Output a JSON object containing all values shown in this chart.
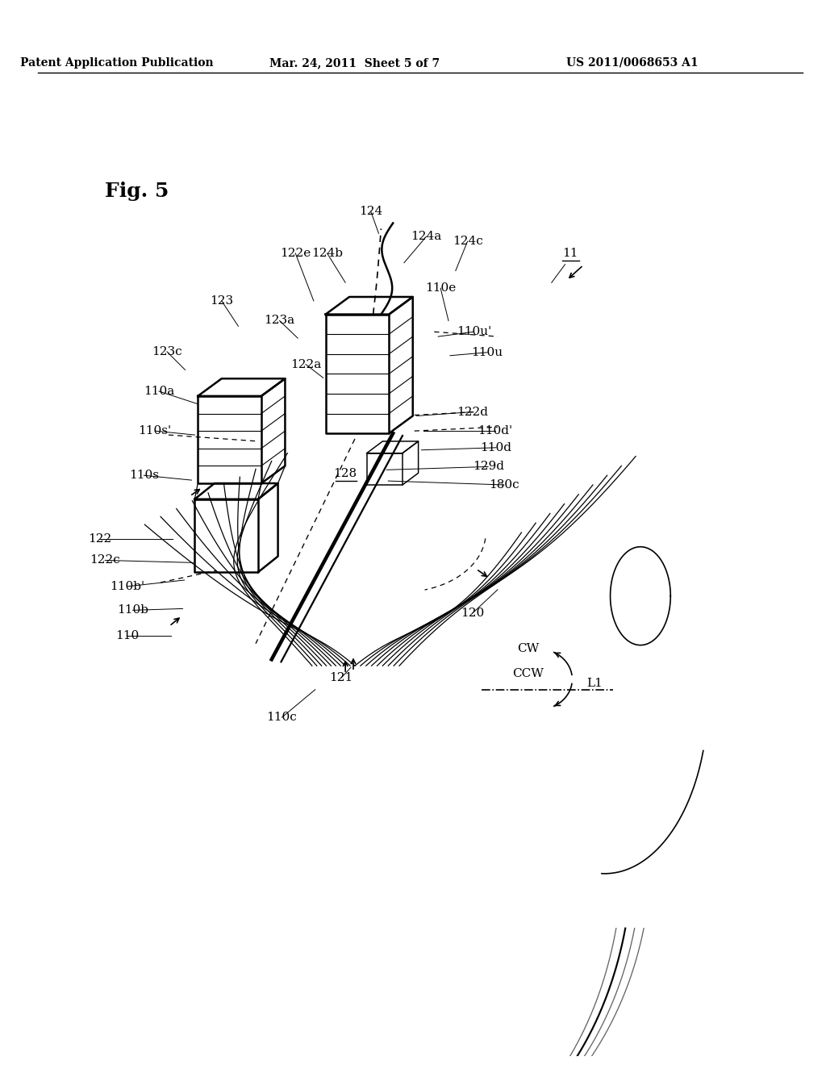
{
  "bg_color": "#ffffff",
  "line_color": "#000000",
  "header_left": "Patent Application Publication",
  "header_mid": "Mar. 24, 2011  Sheet 5 of 7",
  "header_right": "US 2011/0068653 A1",
  "fig_label": "Fig. 5"
}
